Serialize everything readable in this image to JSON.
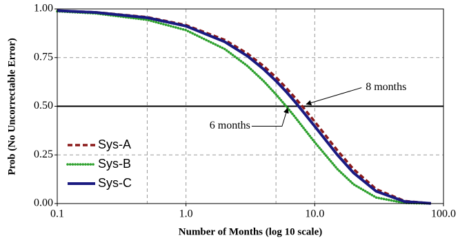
{
  "chart_data": {
    "type": "line",
    "xlabel": "Number of Months (log 10 scale)",
    "ylabel": "Prob (No Uncorrectable Error)",
    "xscale": "log",
    "x": [
      0.1,
      0.2,
      0.5,
      1,
      2,
      3,
      4,
      5,
      6,
      7,
      8,
      10,
      15,
      20,
      30,
      50,
      80
    ],
    "series": [
      {
        "name": "Sys-A",
        "color": "#8b1a1a",
        "style": "dashed",
        "values": [
          0.991,
          0.983,
          0.958,
          0.917,
          0.841,
          0.771,
          0.707,
          0.649,
          0.595,
          0.545,
          0.5,
          0.421,
          0.273,
          0.177,
          0.074,
          0.013,
          0.001
        ]
      },
      {
        "name": "Sys-B",
        "color": "#2ca02c",
        "style": "dotted",
        "values": [
          0.988,
          0.977,
          0.944,
          0.891,
          0.794,
          0.707,
          0.63,
          0.561,
          0.5,
          0.446,
          0.397,
          0.315,
          0.177,
          0.099,
          0.031,
          0.003,
          0
        ]
      },
      {
        "name": "Sys-C",
        "color": "#1a1a80",
        "style": "solid",
        "values": [
          0.991,
          0.982,
          0.955,
          0.912,
          0.831,
          0.758,
          0.691,
          0.63,
          0.575,
          0.524,
          0.477,
          0.397,
          0.25,
          0.158,
          0.063,
          0.01,
          0.001
        ]
      }
    ],
    "xlim": [
      0.1,
      100
    ],
    "ylim": [
      0,
      1
    ],
    "xticks": [
      0.1,
      {
        "value": 1,
        "label": "1.0"
      },
      {
        "value": 10,
        "label": "10.0"
      },
      {
        "value": 100,
        "label": "100.0"
      }
    ],
    "yticks": [
      {
        "value": 0,
        "label": "0.00"
      },
      {
        "value": 0.25,
        "label": "0.25"
      },
      {
        "value": 0.5,
        "label": "0.50"
      },
      {
        "value": 0.75,
        "label": "0.75"
      },
      {
        "value": 1,
        "label": "1.00"
      }
    ],
    "xgrid": [
      0.5,
      1,
      5,
      10
    ],
    "ygrid": [
      0.25,
      0.75
    ],
    "hline": 0.5,
    "legend": "lower-left",
    "annotations": [
      {
        "text": "8 months",
        "x": 8,
        "y": 0.5
      },
      {
        "text": "6 months",
        "x": 6,
        "y": 0.5
      }
    ]
  }
}
